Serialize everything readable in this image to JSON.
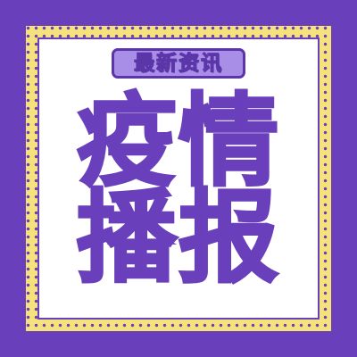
{
  "poster": {
    "badge_text": "最新资讯",
    "title_line_1": "疫情",
    "title_line_2": "播报"
  },
  "colors": {
    "background": "#6a3fbb",
    "frame_dots": "#f6e27a",
    "panel": "#ffffff",
    "badge_fill": "#a98ee8",
    "title": "#6a3fbb"
  }
}
